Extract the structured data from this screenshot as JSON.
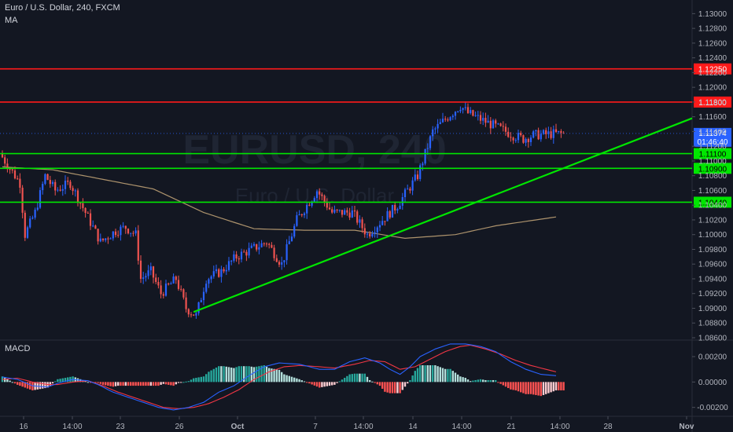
{
  "header": {
    "title": "Euro / U.S. Dollar, 240, FXCM",
    "indicator": "MA",
    "watermark_symbol": "EURUSD, 240",
    "watermark_name": "Euro / U.S. Dollar"
  },
  "macd_label": "MACD",
  "price_axis": {
    "ticks": [
      "1.13000",
      "1.12800",
      "1.12600",
      "1.12400",
      "1.12200",
      "1.12000",
      "1.11800",
      "1.11600",
      "1.11400",
      "1.11200",
      "1.11000",
      "1.10800",
      "1.10600",
      "1.10400",
      "1.10200",
      "1.10000",
      "1.09800",
      "1.09600",
      "1.09400",
      "1.09200",
      "1.09000",
      "1.08800",
      "1.08600"
    ],
    "current_price": "1.11374",
    "countdown": "01:46:40"
  },
  "macd_axis": {
    "ticks": [
      "0.00200",
      "0.00000",
      "-0.00200"
    ]
  },
  "time_axis": {
    "labels": [
      "16",
      "14:00",
      "23",
      "26",
      "Oct",
      "7",
      "14:00",
      "14",
      "14:00",
      "21",
      "14:00",
      "28",
      "Nov"
    ]
  },
  "colors": {
    "background": "#131722",
    "bull": "#2962ff",
    "bear": "#ef5350",
    "ma": "#c9a97a",
    "resistance": "#ff1a1a",
    "support": "#00e600",
    "trendline": "#00e600",
    "macd_line": "#2962ff",
    "signal_line": "#f23645",
    "hist_pos_strong": "#26a69a",
    "hist_pos_weak": "#b2dfdb",
    "hist_neg_strong": "#ff5252",
    "hist_neg_weak": "#ffcdd2"
  },
  "chart_data": {
    "type": "candlestick",
    "symbol": "EURUSD",
    "timeframe": "240",
    "ylim": [
      1.086,
      1.131
    ],
    "price_levels": {
      "resistance": [
        "1.12250",
        "1.11800"
      ],
      "support": [
        "1.11100",
        "1.10900",
        "1.10440"
      ]
    },
    "trendline": {
      "start": {
        "x_index": 76,
        "price": 1.0895
      },
      "end": {
        "x_index": 224,
        "price": 1.1158
      }
    },
    "moving_average_path": [
      [
        0,
        1.1092
      ],
      [
        20,
        1.1088
      ],
      [
        40,
        1.1075
      ],
      [
        60,
        1.1062
      ],
      [
        80,
        1.103
      ],
      [
        100,
        1.1008
      ],
      [
        120,
        1.1006
      ],
      [
        140,
        1.1006
      ],
      [
        160,
        1.0995
      ],
      [
        180,
        1.1
      ],
      [
        196,
        1.1012
      ],
      [
        212,
        1.102
      ],
      [
        220,
        1.1024
      ]
    ],
    "price_path": [
      [
        0,
        1.111
      ],
      [
        8,
        1.107
      ],
      [
        10,
        1.1
      ],
      [
        14,
        1.103
      ],
      [
        18,
        1.108
      ],
      [
        22,
        1.106
      ],
      [
        28,
        1.107
      ],
      [
        34,
        1.103
      ],
      [
        40,
        1.099
      ],
      [
        46,
        1.1005
      ],
      [
        50,
        1.101
      ],
      [
        54,
        1.1
      ],
      [
        56,
        1.094
      ],
      [
        60,
        1.095
      ],
      [
        64,
        1.092
      ],
      [
        70,
        1.094
      ],
      [
        74,
        1.09
      ],
      [
        78,
        1.089
      ],
      [
        82,
        1.094
      ],
      [
        88,
        1.095
      ],
      [
        94,
        1.097
      ],
      [
        100,
        1.098
      ],
      [
        106,
        1.099
      ],
      [
        112,
        1.096
      ],
      [
        118,
        1.102
      ],
      [
        126,
        1.106
      ],
      [
        132,
        1.103
      ],
      [
        140,
        1.103
      ],
      [
        146,
        1.1
      ],
      [
        152,
        1.102
      ],
      [
        158,
        1.104
      ],
      [
        162,
        1.106
      ],
      [
        166,
        1.108
      ],
      [
        168,
        1.11
      ],
      [
        172,
        1.114
      ],
      [
        178,
        1.116
      ],
      [
        183,
        1.1175
      ],
      [
        186,
        1.1165
      ],
      [
        192,
        1.1155
      ],
      [
        198,
        1.1145
      ],
      [
        204,
        1.1135
      ],
      [
        208,
        1.113
      ],
      [
        212,
        1.1135
      ],
      [
        220,
        1.1137
      ]
    ],
    "current_price": 1.11374,
    "macd": {
      "ylim": [
        -0.0027,
        0.0033
      ],
      "macd_line": [
        [
          0,
          0.0004
        ],
        [
          6,
          0.0002
        ],
        [
          12,
          -0.0003
        ],
        [
          18,
          -0.0004
        ],
        [
          22,
          -0.0001
        ],
        [
          28,
          0.0002
        ],
        [
          34,
          0.0001
        ],
        [
          38,
          -0.0002
        ],
        [
          44,
          -0.0008
        ],
        [
          50,
          -0.0012
        ],
        [
          56,
          -0.0016
        ],
        [
          62,
          -0.002
        ],
        [
          68,
          -0.0022
        ],
        [
          74,
          -0.002
        ],
        [
          80,
          -0.0016
        ],
        [
          86,
          -0.0008
        ],
        [
          92,
          -0.0003
        ],
        [
          98,
          0.0005
        ],
        [
          104,
          0.0012
        ],
        [
          110,
          0.0015
        ],
        [
          118,
          0.0014
        ],
        [
          126,
          0.001
        ],
        [
          132,
          0.001
        ],
        [
          138,
          0.0016
        ],
        [
          144,
          0.0019
        ],
        [
          150,
          0.0015
        ],
        [
          154,
          0.001
        ],
        [
          158,
          0.0006
        ],
        [
          162,
          0.0012
        ],
        [
          166,
          0.002
        ],
        [
          172,
          0.0026
        ],
        [
          178,
          0.003
        ],
        [
          184,
          0.003
        ],
        [
          190,
          0.0028
        ],
        [
          196,
          0.0024
        ],
        [
          202,
          0.0016
        ],
        [
          208,
          0.001
        ],
        [
          214,
          0.0006
        ],
        [
          220,
          0.0005
        ]
      ],
      "signal_line": [
        [
          0,
          0.0002
        ],
        [
          6,
          0.0003
        ],
        [
          12,
          0.0
        ],
        [
          18,
          -0.0002
        ],
        [
          22,
          -0.0002
        ],
        [
          28,
          0.0
        ],
        [
          34,
          0.0001
        ],
        [
          40,
          -0.0003
        ],
        [
          46,
          -0.0008
        ],
        [
          52,
          -0.0012
        ],
        [
          58,
          -0.0016
        ],
        [
          64,
          -0.002
        ],
        [
          70,
          -0.0021
        ],
        [
          76,
          -0.002
        ],
        [
          82,
          -0.0017
        ],
        [
          88,
          -0.0012
        ],
        [
          94,
          -0.0006
        ],
        [
          100,
          0.0002
        ],
        [
          106,
          0.0008
        ],
        [
          112,
          0.0012
        ],
        [
          118,
          0.0013
        ],
        [
          126,
          0.0012
        ],
        [
          132,
          0.0011
        ],
        [
          140,
          0.0014
        ],
        [
          146,
          0.0017
        ],
        [
          152,
          0.0016
        ],
        [
          158,
          0.001
        ],
        [
          164,
          0.0012
        ],
        [
          170,
          0.0018
        ],
        [
          176,
          0.0024
        ],
        [
          182,
          0.0028
        ],
        [
          186,
          0.0029
        ],
        [
          192,
          0.0026
        ],
        [
          198,
          0.0022
        ],
        [
          204,
          0.0017
        ],
        [
          210,
          0.0013
        ],
        [
          216,
          0.001
        ],
        [
          220,
          0.0008
        ]
      ]
    }
  }
}
